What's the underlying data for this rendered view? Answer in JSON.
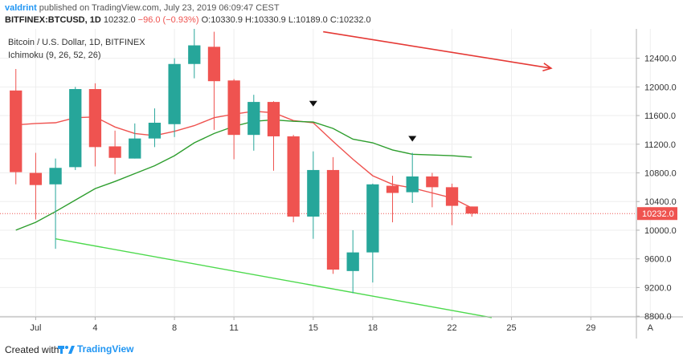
{
  "header": {
    "author": "valdrint",
    "published_text": "published on TradingView.com, July 23, 2019 06:09:47 CEST",
    "symbol_line": "BITFINEX:BTCUSD, 1D",
    "last_value": "10232.0",
    "change": "−96.0 (−0.93%)",
    "open": "O:10330.9",
    "high": "H:10330.9",
    "low": "L:10189.0",
    "close": "C:10232.0"
  },
  "chart_data": {
    "type": "candlestick",
    "title": "Bitcoin / U.S. Dollar, 1D, BITFINEX",
    "indicator_label": "Ichimoku (9, 26, 52, 26)",
    "y_axis": {
      "ylim": [
        8790,
        12810
      ],
      "ticks": [
        "12400.0",
        "12000.0",
        "11600.0",
        "11200.0",
        "10800.0",
        "10400.0",
        "10000.0",
        "9600.0",
        "9200.0",
        "8800.0"
      ],
      "tick_values": [
        12400,
        12000,
        11600,
        11200,
        10800,
        10400,
        10000,
        9600,
        9200,
        8800
      ],
      "current_price_label": "10232.0",
      "current_price": 10232.0
    },
    "x_axis": {
      "day_range": [
        -0.8,
        31.3
      ],
      "tick_labels": [
        "Jul",
        "4",
        "8",
        "11",
        "15",
        "18",
        "22",
        "25",
        "29",
        "A"
      ],
      "tick_days": [
        1,
        4,
        8,
        11,
        15,
        18,
        22,
        25,
        29,
        32
      ]
    },
    "candles": [
      {
        "day": 0,
        "open": 11950,
        "high": 12250,
        "low": 10640,
        "close": 10810
      },
      {
        "day": 1,
        "open": 10800,
        "high": 11080,
        "low": 10150,
        "close": 10630
      },
      {
        "day": 2,
        "open": 10640,
        "high": 11000,
        "low": 9740,
        "close": 10870
      },
      {
        "day": 3,
        "open": 10880,
        "high": 12000,
        "low": 10840,
        "close": 11970
      },
      {
        "day": 4,
        "open": 11970,
        "high": 12050,
        "low": 10890,
        "close": 11160
      },
      {
        "day": 5,
        "open": 11170,
        "high": 11390,
        "low": 10780,
        "close": 11010
      },
      {
        "day": 6,
        "open": 11000,
        "high": 11490,
        "low": 11000,
        "close": 11280
      },
      {
        "day": 7,
        "open": 11280,
        "high": 11700,
        "low": 11160,
        "close": 11500
      },
      {
        "day": 8,
        "open": 11480,
        "high": 12400,
        "low": 11300,
        "close": 12320
      },
      {
        "day": 9,
        "open": 12320,
        "high": 13150,
        "low": 12120,
        "close": 12580
      },
      {
        "day": 10,
        "open": 12560,
        "high": 12770,
        "low": 11400,
        "close": 12080
      },
      {
        "day": 11,
        "open": 12090,
        "high": 12110,
        "low": 10990,
        "close": 11330
      },
      {
        "day": 12,
        "open": 11330,
        "high": 11890,
        "low": 11110,
        "close": 11790
      },
      {
        "day": 13,
        "open": 11790,
        "high": 11800,
        "low": 10830,
        "close": 11310
      },
      {
        "day": 14,
        "open": 11310,
        "high": 11330,
        "low": 10110,
        "close": 10190
      },
      {
        "day": 15,
        "open": 10190,
        "high": 11100,
        "low": 9880,
        "close": 10840
      },
      {
        "day": 16,
        "open": 10840,
        "high": 11020,
        "low": 9390,
        "close": 9450
      },
      {
        "day": 17,
        "open": 9430,
        "high": 10000,
        "low": 9120,
        "close": 9690
      },
      {
        "day": 18,
        "open": 9690,
        "high": 10650,
        "low": 9270,
        "close": 10640
      },
      {
        "day": 19,
        "open": 10620,
        "high": 10760,
        "low": 10110,
        "close": 10520
      },
      {
        "day": 20,
        "open": 10530,
        "high": 11080,
        "low": 10380,
        "close": 10750
      },
      {
        "day": 21,
        "open": 10750,
        "high": 10800,
        "low": 10320,
        "close": 10600
      },
      {
        "day": 22,
        "open": 10600,
        "high": 10650,
        "low": 10070,
        "close": 10340
      },
      {
        "day": 23,
        "open": 10330.9,
        "high": 10330.9,
        "low": 10189,
        "close": 10232
      }
    ],
    "lines": [
      {
        "role": "ichimoku-red",
        "color": "#ef5350",
        "points": [
          [
            0,
            11470
          ],
          [
            1,
            11490
          ],
          [
            2,
            11500
          ],
          [
            3,
            11570
          ],
          [
            4,
            11580
          ],
          [
            5,
            11440
          ],
          [
            6,
            11350
          ],
          [
            7,
            11320
          ],
          [
            8,
            11380
          ],
          [
            9,
            11460
          ],
          [
            10,
            11570
          ],
          [
            11,
            11620
          ],
          [
            12,
            11660
          ],
          [
            13,
            11640
          ],
          [
            14,
            11530
          ],
          [
            15,
            11500
          ],
          [
            16,
            11240
          ],
          [
            17,
            10990
          ],
          [
            18,
            10760
          ],
          [
            19,
            10640
          ],
          [
            20,
            10590
          ],
          [
            21,
            10520
          ],
          [
            22,
            10450
          ],
          [
            23,
            10310
          ]
        ]
      },
      {
        "role": "ichimoku-green",
        "color": "#2e9e2e",
        "points": [
          [
            0,
            10000
          ],
          [
            1,
            10110
          ],
          [
            2,
            10260
          ],
          [
            3,
            10420
          ],
          [
            4,
            10580
          ],
          [
            5,
            10680
          ],
          [
            6,
            10790
          ],
          [
            7,
            10900
          ],
          [
            8,
            11040
          ],
          [
            9,
            11220
          ],
          [
            10,
            11350
          ],
          [
            11,
            11450
          ],
          [
            12,
            11520
          ],
          [
            13,
            11540
          ],
          [
            14,
            11520
          ],
          [
            15,
            11510
          ],
          [
            16,
            11420
          ],
          [
            17,
            11270
          ],
          [
            18,
            11220
          ],
          [
            19,
            11120
          ],
          [
            20,
            11060
          ],
          [
            21,
            11050
          ],
          [
            22,
            11040
          ],
          [
            23,
            11020
          ]
        ]
      },
      {
        "role": "trendline-lower",
        "color": "#4cd94c",
        "points": [
          [
            2,
            9880
          ],
          [
            24,
            8780
          ]
        ]
      },
      {
        "role": "trend-arrow",
        "color": "#e53935",
        "points": [
          [
            15.5,
            12770
          ],
          [
            27,
            12260
          ]
        ]
      }
    ],
    "markers": [
      {
        "day": 15,
        "price": 11760,
        "shape": "down-triangle"
      },
      {
        "day": 20,
        "price": 11270,
        "shape": "down-triangle"
      }
    ],
    "colors": {
      "up": "#26a69a",
      "down": "#ef5350",
      "grid": "#eeeeee",
      "axis_text": "#333333"
    }
  },
  "footer": {
    "created_with": "Created with",
    "brand": "TradingView"
  }
}
